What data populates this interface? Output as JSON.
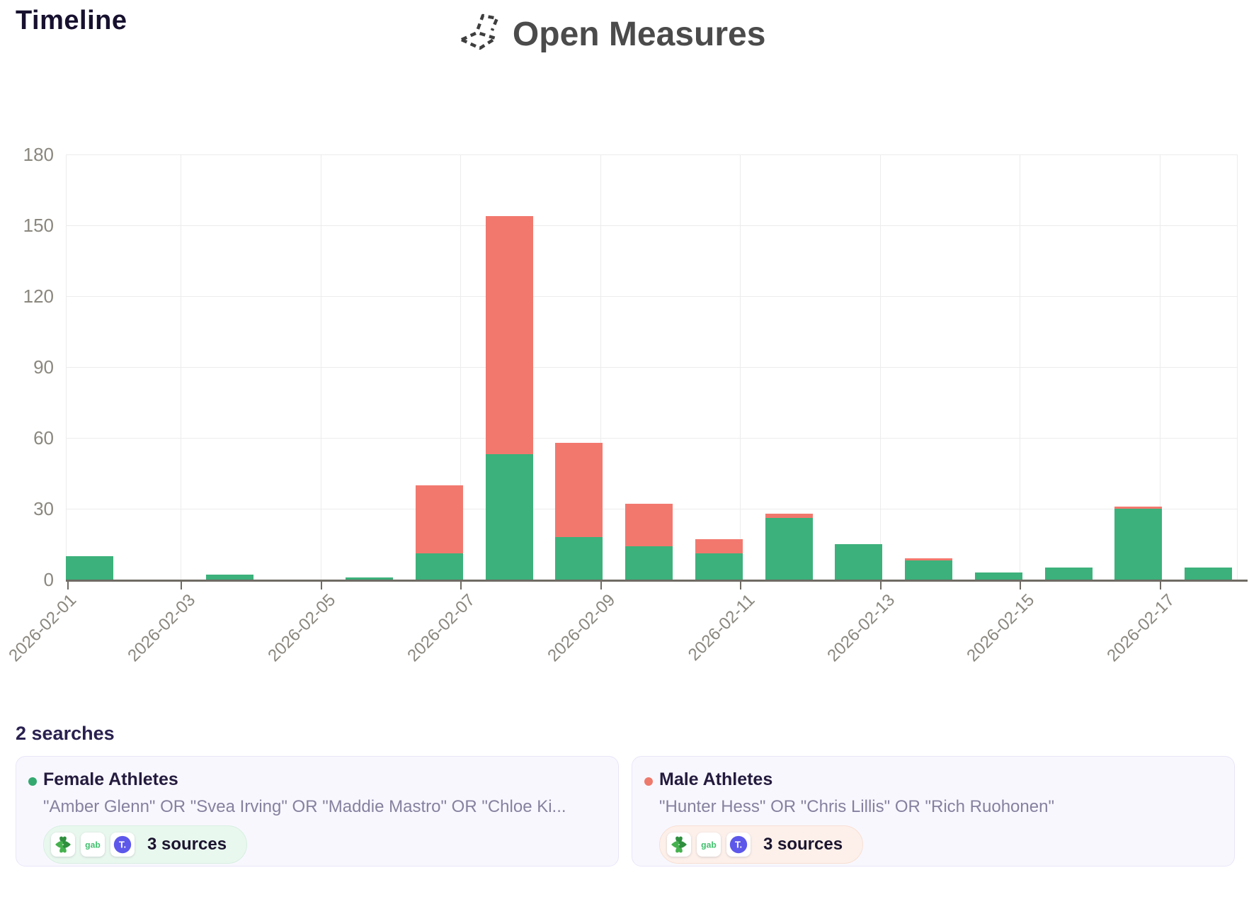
{
  "header": {
    "page_title": "Timeline",
    "brand": "Open Measures"
  },
  "chart_data": {
    "type": "bar",
    "stacked": true,
    "x": [
      "2026-02-01",
      "2026-02-02",
      "2026-02-03",
      "2026-02-04",
      "2026-02-05",
      "2026-02-06",
      "2026-02-07",
      "2026-02-08",
      "2026-02-09",
      "2026-02-10",
      "2026-02-11",
      "2026-02-12",
      "2026-02-13",
      "2026-02-14",
      "2026-02-15",
      "2026-02-16",
      "2026-02-17"
    ],
    "x_tick_labels": [
      "2026-02-01",
      "2026-02-03",
      "2026-02-05",
      "2026-02-07",
      "2026-02-09",
      "2026-02-11",
      "2026-02-13",
      "2026-02-15",
      "2026-02-17"
    ],
    "series": [
      {
        "name": "Female Athletes",
        "color": "#3cb17b",
        "values": [
          10,
          0,
          2,
          0,
          1,
          11,
          53,
          18,
          14,
          11,
          26,
          15,
          8,
          3,
          5,
          30,
          5
        ]
      },
      {
        "name": "Male Athletes",
        "color": "#f2786e",
        "values": [
          0,
          0,
          0,
          0,
          0,
          29,
          101,
          40,
          18,
          6,
          2,
          0,
          1,
          0,
          0,
          1,
          0
        ]
      }
    ],
    "y_ticks": [
      0,
      30,
      60,
      90,
      120,
      150,
      180
    ],
    "ylim": [
      0,
      180
    ],
    "xlabel": "",
    "ylabel": "",
    "grid": true,
    "legend_position": "bottom-cards"
  },
  "searches": {
    "heading": "2 searches",
    "cards": [
      {
        "title": "Female Athletes",
        "dot_color": "#33a96f",
        "query": "\"Amber Glenn\" OR \"Svea Irving\" OR \"Maddie Mastro\" OR \"Chloe Ki...",
        "sources_label": "3 sources",
        "source_icons": [
          "fourchan-icon",
          "gab-icon",
          "truth-social-icon"
        ],
        "pill_color": "#e9f8ef"
      },
      {
        "title": "Male Athletes",
        "dot_color": "#ee7a6c",
        "query": "\"Hunter Hess\" OR \"Chris Lillis\" OR \"Rich Ruohonen\"",
        "sources_label": "3 sources",
        "source_icons": [
          "fourchan-icon",
          "gab-icon",
          "truth-social-icon"
        ],
        "pill_color": "#fdf0ea"
      }
    ]
  }
}
